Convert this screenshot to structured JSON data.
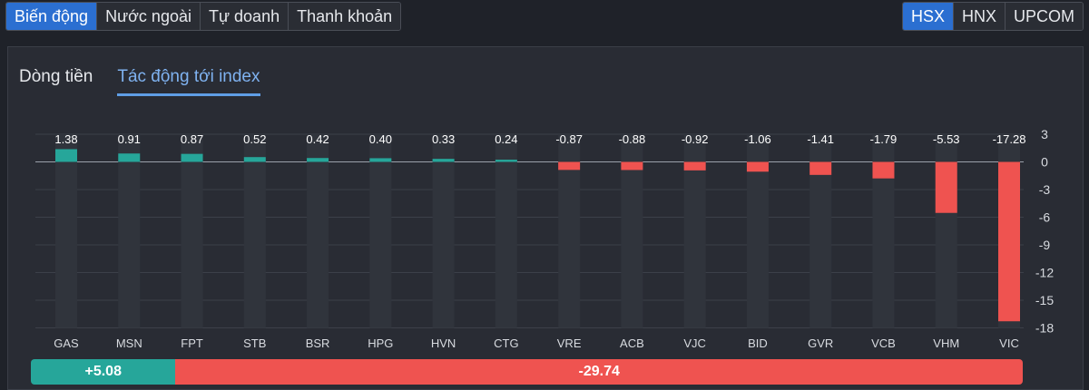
{
  "tabs": [
    "Biến động",
    "Nước ngoài",
    "Tự doanh",
    "Thanh khoản"
  ],
  "exchanges": [
    "HSX",
    "HNX",
    "UPCOM"
  ],
  "subtabs": [
    "Dòng tiền",
    "Tác động tới index"
  ],
  "summary": {
    "positive": "+5.08",
    "negative": "-29.74",
    "positive_value": 5.08,
    "negative_value": -29.74
  },
  "colors": {
    "positive": "#26a69a",
    "negative": "#ef5350",
    "accent": "#2b6fd1"
  },
  "chart_data": {
    "type": "bar",
    "categories": [
      "GAS",
      "MSN",
      "FPT",
      "STB",
      "BSR",
      "HPG",
      "HVN",
      "CTG",
      "VRE",
      "ACB",
      "VJC",
      "BID",
      "GVR",
      "VCB",
      "VHM",
      "VIC"
    ],
    "values": [
      1.38,
      0.91,
      0.87,
      0.52,
      0.42,
      0.4,
      0.33,
      0.24,
      -0.87,
      -0.88,
      -0.92,
      -1.06,
      -1.41,
      -1.79,
      -5.53,
      -17.28
    ],
    "value_labels": [
      "1.38",
      "0.91",
      "0.87",
      "0.52",
      "0.42",
      "0.40",
      "0.33",
      "0.24",
      "-0.87",
      "-0.88",
      "-0.92",
      "-1.06",
      "-1.41",
      "-1.79",
      "-5.53",
      "-17.28"
    ],
    "yticks": [
      3,
      0,
      -3,
      -6,
      -9,
      -12,
      -15,
      -18
    ],
    "ylim": [
      -18,
      3
    ],
    "grid": true,
    "title": "",
    "xlabel": "",
    "ylabel": ""
  }
}
